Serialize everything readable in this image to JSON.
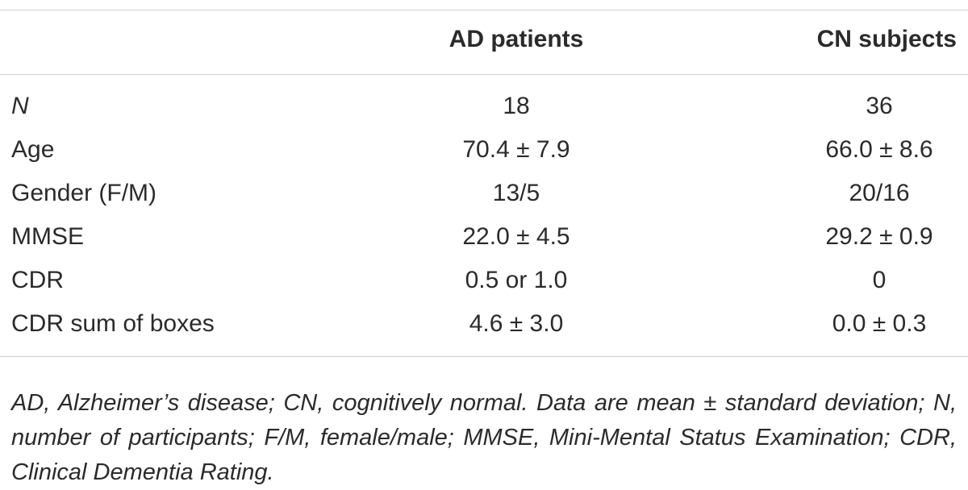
{
  "table": {
    "headers": {
      "label": "",
      "ad": "AD patients",
      "cn": "CN subjects"
    },
    "rows": [
      {
        "label": "N",
        "ad": "18",
        "cn": "36"
      },
      {
        "label": "Age",
        "ad": "70.4 ± 7.9",
        "cn": "66.0 ± 8.6"
      },
      {
        "label": "Gender (F/M)",
        "ad": "13/5",
        "cn": "20/16"
      },
      {
        "label": "MMSE",
        "ad": "22.0 ± 4.5",
        "cn": "29.2 ± 0.9"
      },
      {
        "label": "CDR",
        "ad": "0.5 or 1.0",
        "cn": "0"
      },
      {
        "label": "CDR sum of boxes",
        "ad": "4.6 ± 3.0",
        "cn": "0.0 ± 0.3"
      }
    ]
  },
  "footnote": "AD, Alzheimer’s disease; CN, cognitively normal. Data are mean ± standard deviation; N, number of participants; F/M, female/male; MMSE, Mini-Mental Status Examination; CDR, Clinical Dementia Rating."
}
